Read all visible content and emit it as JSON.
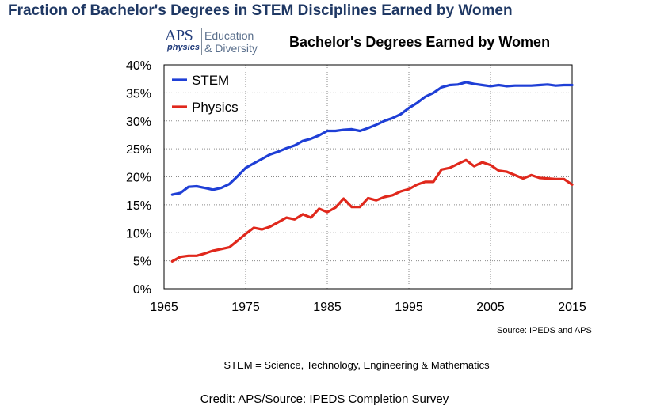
{
  "header": {
    "title": "Fraction of Bachelor's Degrees in STEM Disciplines Earned by Women"
  },
  "logo": {
    "mark": "APS",
    "sub": "physics",
    "line1": "Education",
    "line2": "& Diversity"
  },
  "chart_data": {
    "type": "line",
    "title": "Bachelor's Degrees Earned by Women",
    "xlabel": "",
    "ylabel": "",
    "xlim": [
      1965,
      2015
    ],
    "ylim": [
      0,
      40
    ],
    "x_ticks": [
      "1965",
      "1975",
      "1985",
      "1995",
      "2005",
      "2015"
    ],
    "y_ticks": [
      "0%",
      "5%",
      "10%",
      "15%",
      "20%",
      "25%",
      "30%",
      "35%",
      "40%"
    ],
    "grid": "horizontal dotted",
    "legend_position": "top-left",
    "x": [
      1966,
      1967,
      1968,
      1969,
      1970,
      1971,
      1972,
      1973,
      1974,
      1975,
      1976,
      1977,
      1978,
      1979,
      1980,
      1981,
      1982,
      1983,
      1984,
      1985,
      1986,
      1987,
      1988,
      1989,
      1990,
      1991,
      1992,
      1993,
      1994,
      1995,
      1996,
      1997,
      1998,
      1999,
      2000,
      2001,
      2002,
      2003,
      2004,
      2005,
      2006,
      2007,
      2008,
      2009,
      2010,
      2011,
      2012,
      2013,
      2014,
      2015
    ],
    "series": [
      {
        "name": "STEM",
        "color": "#1f3fd6",
        "values": [
          16.8,
          17.1,
          18.2,
          18.3,
          18.0,
          17.7,
          18.0,
          18.7,
          20.1,
          21.6,
          22.4,
          23.2,
          24.0,
          24.5,
          25.1,
          25.6,
          26.4,
          26.8,
          27.4,
          28.2,
          28.2,
          28.4,
          28.5,
          28.2,
          28.7,
          29.3,
          30.0,
          30.5,
          31.2,
          32.3,
          33.2,
          34.3,
          35.0,
          36.0,
          36.4,
          36.5,
          36.9,
          36.6,
          36.4,
          36.2,
          36.4,
          36.2,
          36.3,
          36.3,
          36.3,
          36.4,
          36.5,
          36.3,
          36.4,
          36.4
        ]
      },
      {
        "name": "Physics",
        "color": "#e0281c",
        "values": [
          4.9,
          5.7,
          5.9,
          5.9,
          6.3,
          6.8,
          7.1,
          7.4,
          8.6,
          9.8,
          10.9,
          10.6,
          11.1,
          11.9,
          12.7,
          12.4,
          13.3,
          12.7,
          14.3,
          13.7,
          14.5,
          16.1,
          14.6,
          14.6,
          16.2,
          15.8,
          16.4,
          16.7,
          17.4,
          17.8,
          18.6,
          19.1,
          19.1,
          21.3,
          21.6,
          22.3,
          23.0,
          21.9,
          22.6,
          22.1,
          21.1,
          20.9,
          20.3,
          19.7,
          20.3,
          19.8,
          19.7,
          19.6,
          19.6,
          18.6
        ]
      }
    ]
  },
  "source_note": "Source: IPEDS and APS",
  "footnote": "STEM = Science, Technology, Engineering & Mathematics",
  "credit": "Credit: APS/Source: IPEDS Completion Survey"
}
